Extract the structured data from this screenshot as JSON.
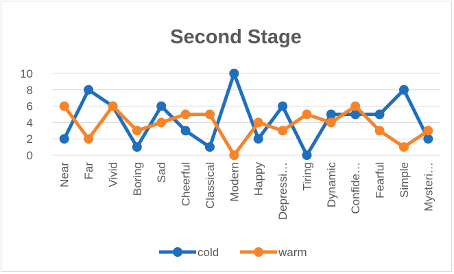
{
  "chart_data": {
    "type": "line",
    "title": "Second Stage",
    "xlabel": "",
    "ylabel": "",
    "categories": [
      "Near",
      "Far",
      "Vivid",
      "Boring",
      "Sad",
      "Cheerful",
      "Classical",
      "Modern",
      "Happy",
      "Depressi…",
      "Tiring",
      "Dynamic",
      "Confide…",
      "Fearful",
      "Simple",
      "Mysteri…"
    ],
    "ylim": [
      0,
      10
    ],
    "yticks": [
      "0",
      "2",
      "4",
      "6",
      "8",
      "10"
    ],
    "grid": true,
    "legend": "bottom",
    "series": [
      {
        "name": "cold",
        "color": "#1f6fbd",
        "values": [
          2,
          8,
          6,
          1,
          6,
          3,
          1,
          10,
          2,
          6,
          0,
          5,
          5,
          5,
          8,
          2
        ]
      },
      {
        "name": "warm",
        "color": "#f5842b",
        "values": [
          6,
          2,
          6,
          3,
          4,
          5,
          5,
          0,
          4,
          3,
          5,
          4,
          6,
          3,
          1,
          3
        ]
      }
    ]
  }
}
